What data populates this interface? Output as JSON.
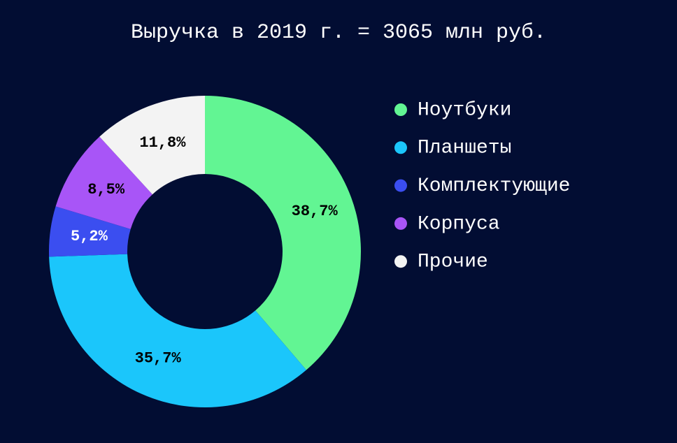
{
  "chart_data": {
    "type": "donut",
    "title": "Выручка в 2019 г. = 3065 млн руб.",
    "categories": [
      "Ноутбуки",
      "Планшеты",
      "Комплектующие",
      "Корпуса",
      "Прочие"
    ],
    "values": [
      38.7,
      35.7,
      5.2,
      8.5,
      11.8
    ],
    "value_labels": [
      "38,7%",
      "35,7%",
      "5,2%",
      "8,5%",
      "11,8%"
    ],
    "colors": [
      "#62f593",
      "#1bc6fb",
      "#3b4ef0",
      "#a855f7",
      "#f3f3f3"
    ],
    "label_colors": [
      "#000000",
      "#000000",
      "#ffffff",
      "#000000",
      "#000000"
    ],
    "legend": "right"
  }
}
